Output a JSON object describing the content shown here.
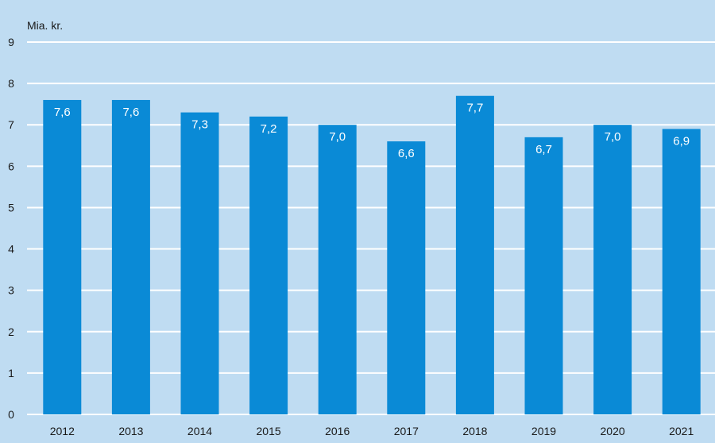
{
  "chart_data": {
    "type": "bar",
    "unit_label": "Mia. kr.",
    "categories": [
      "2012",
      "2013",
      "2014",
      "2015",
      "2016",
      "2017",
      "2018",
      "2019",
      "2020",
      "2021"
    ],
    "values": [
      7.6,
      7.6,
      7.3,
      7.2,
      7.0,
      6.6,
      7.7,
      6.7,
      7.0,
      6.9
    ],
    "value_labels": [
      "7,6",
      "7,6",
      "7,3",
      "7,2",
      "7,0",
      "6,6",
      "7,7",
      "6,7",
      "7,0",
      "6,9"
    ],
    "ylim": [
      0,
      9
    ],
    "yticks": [
      "0",
      "1",
      "2",
      "3",
      "4",
      "5",
      "6",
      "7",
      "8",
      "9"
    ],
    "grid": true,
    "colors": {
      "background": "#bfdcf2",
      "bar": "#0a8ad6",
      "grid": "#ffffff",
      "text": "#1a1a1a",
      "bar_label": "#ffffff"
    }
  }
}
